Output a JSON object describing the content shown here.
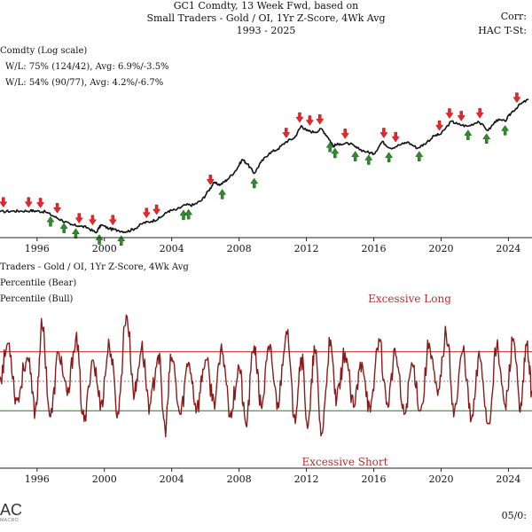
{
  "header": {
    "title_line1": "GC1 Comdty, 13 Week Fwd, based on",
    "title_line2": "Small Traders - Gold / OI, 1Yr Z-Score, 4Wk Avg",
    "title_line3": "1993 - 2025",
    "corr_line1": "Corr:",
    "corr_line2": "HAC T-St:"
  },
  "top_panel": {
    "legend_line1": "Comdty (Log scale)",
    "legend_line2": "W/L: 75% (124/42), Avg: 6.9%/-3.5%",
    "legend_line3": "W/L: 54% (90/77), Avg: 4.2%/-6.7%"
  },
  "bottom_panel": {
    "legend_line1": "Traders - Gold / OI, 1Yr Z-Score, 4Wk Avg",
    "legend_line2": "Percentile (Bear)",
    "legend_line3": "Percentile (Bull)",
    "annotation_long": "Excessive Long",
    "annotation_short": "Excessive Short"
  },
  "footer": {
    "logo_text": "AC",
    "logo_subtext": "MACRO",
    "date_text": "05/0:"
  },
  "colors": {
    "price_line": "#111111",
    "zscore_line": "#8b1a1a",
    "bear_marker": "#e8262b",
    "bull_marker": "#2e8b2e",
    "upper_threshold": "#cc3333",
    "lower_threshold": "#2a9a2a",
    "mid_line": "#555555",
    "annotation_long": "#b03030",
    "annotation_short": "#b03030"
  },
  "chart_data": [
    {
      "type": "line",
      "scale": "log",
      "x_range": [
        1993.8,
        2025.4
      ],
      "x_ticks": [
        1996,
        2000,
        2004,
        2008,
        2012,
        2016,
        2020,
        2024
      ],
      "x_tick_labels": [
        "1996",
        "2000",
        "2004",
        "2008",
        "2012",
        "2016",
        "2020",
        "2024"
      ],
      "ylim": [
        250,
        2900
      ],
      "price_series": [
        [
          1993.8,
          380
        ],
        [
          1994.5,
          385
        ],
        [
          1995.0,
          385
        ],
        [
          1995.6,
          388
        ],
        [
          1996.0,
          385
        ],
        [
          1996.5,
          380
        ],
        [
          1997.0,
          350
        ],
        [
          1997.5,
          325
        ],
        [
          1998.0,
          300
        ],
        [
          1998.5,
          295
        ],
        [
          1999.0,
          285
        ],
        [
          1999.5,
          260
        ],
        [
          1999.8,
          300
        ],
        [
          2000.3,
          280
        ],
        [
          2000.8,
          272
        ],
        [
          2001.3,
          265
        ],
        [
          2001.8,
          280
        ],
        [
          2002.3,
          310
        ],
        [
          2002.8,
          320
        ],
        [
          2003.3,
          340
        ],
        [
          2003.8,
          385
        ],
        [
          2004.3,
          395
        ],
        [
          2004.8,
          430
        ],
        [
          2005.3,
          430
        ],
        [
          2005.8,
          470
        ],
        [
          2006.2,
          560
        ],
        [
          2006.5,
          640
        ],
        [
          2006.9,
          620
        ],
        [
          2007.3,
          680
        ],
        [
          2007.8,
          800
        ],
        [
          2008.2,
          980
        ],
        [
          2008.5,
          900
        ],
        [
          2008.9,
          760
        ],
        [
          2009.3,
          930
        ],
        [
          2009.8,
          1100
        ],
        [
          2010.3,
          1180
        ],
        [
          2010.8,
          1350
        ],
        [
          2011.3,
          1450
        ],
        [
          2011.7,
          1800
        ],
        [
          2012.0,
          1650
        ],
        [
          2012.5,
          1600
        ],
        [
          2012.9,
          1700
        ],
        [
          2013.3,
          1450
        ],
        [
          2013.6,
          1250
        ],
        [
          2014.0,
          1300
        ],
        [
          2014.6,
          1300
        ],
        [
          2015.0,
          1200
        ],
        [
          2015.6,
          1120
        ],
        [
          2016.0,
          1080
        ],
        [
          2016.5,
          1350
        ],
        [
          2017.0,
          1200
        ],
        [
          2017.6,
          1280
        ],
        [
          2018.0,
          1340
        ],
        [
          2018.6,
          1200
        ],
        [
          2019.0,
          1290
        ],
        [
          2019.6,
          1500
        ],
        [
          2020.0,
          1550
        ],
        [
          2020.6,
          1950
        ],
        [
          2021.0,
          1850
        ],
        [
          2021.6,
          1780
        ],
        [
          2022.2,
          1950
        ],
        [
          2022.8,
          1650
        ],
        [
          2023.3,
          2000
        ],
        [
          2023.8,
          1950
        ],
        [
          2024.2,
          2300
        ],
        [
          2024.7,
          2650
        ],
        [
          2025.2,
          2900
        ]
      ],
      "bear_signals": [
        [
          1994.0,
          400
        ],
        [
          1995.5,
          400
        ],
        [
          1996.2,
          395
        ],
        [
          1997.2,
          360
        ],
        [
          1998.5,
          300
        ],
        [
          1999.3,
          290
        ],
        [
          2000.5,
          290
        ],
        [
          2002.5,
          330
        ],
        [
          2003.1,
          350
        ],
        [
          2006.3,
          600
        ],
        [
          2010.8,
          1400
        ],
        [
          2011.6,
          1850
        ],
        [
          2012.2,
          1750
        ],
        [
          2012.8,
          1790
        ],
        [
          2014.3,
          1380
        ],
        [
          2016.6,
          1400
        ],
        [
          2017.3,
          1300
        ],
        [
          2019.9,
          1600
        ],
        [
          2020.5,
          1990
        ],
        [
          2021.2,
          1900
        ],
        [
          2022.3,
          2000
        ],
        [
          2024.5,
          2650
        ]
      ],
      "bull_signals": [
        [
          1996.8,
          360
        ],
        [
          1997.6,
          320
        ],
        [
          1998.3,
          290
        ],
        [
          1999.7,
          260
        ],
        [
          2001.0,
          255
        ],
        [
          2004.7,
          405
        ],
        [
          2005.0,
          410
        ],
        [
          2007.0,
          590
        ],
        [
          2008.9,
          720
        ],
        [
          2013.4,
          1380
        ],
        [
          2013.7,
          1240
        ],
        [
          2014.9,
          1170
        ],
        [
          2015.7,
          1100
        ],
        [
          2016.9,
          1150
        ],
        [
          2018.7,
          1170
        ],
        [
          2021.6,
          1720
        ],
        [
          2022.7,
          1610
        ],
        [
          2023.8,
          1870
        ]
      ]
    },
    {
      "type": "line",
      "x_range": [
        1993.8,
        2025.4
      ],
      "x_ticks": [
        1996,
        2000,
        2004,
        2008,
        2012,
        2016,
        2020,
        2024
      ],
      "x_tick_labels": [
        "1996",
        "2000",
        "2004",
        "2008",
        "2012",
        "2016",
        "2020",
        "2024"
      ],
      "ylim": [
        -3.0,
        3.0
      ],
      "upper_threshold": 1.25,
      "lower_threshold": -1.25,
      "mid_line": 0.0,
      "anchors": [
        [
          1993.8,
          0.2
        ],
        [
          1994.3,
          1.6
        ],
        [
          1994.8,
          -0.8
        ],
        [
          1995.4,
          1.0
        ],
        [
          1995.9,
          -1.2
        ],
        [
          1996.3,
          2.3
        ],
        [
          1996.8,
          -1.5
        ],
        [
          1997.3,
          1.2
        ],
        [
          1997.8,
          -0.6
        ],
        [
          1998.3,
          1.8
        ],
        [
          1998.8,
          -1.7
        ],
        [
          1999.3,
          0.9
        ],
        [
          1999.8,
          -0.9
        ],
        [
          2000.3,
          1.5
        ],
        [
          2000.8,
          -1.3
        ],
        [
          2001.3,
          2.8
        ],
        [
          2001.8,
          -0.5
        ],
        [
          2002.2,
          1.4
        ],
        [
          2002.7,
          -1.0
        ],
        [
          2003.2,
          1.1
        ],
        [
          2003.6,
          -2.0
        ],
        [
          2004.0,
          1.0
        ],
        [
          2004.5,
          -1.4
        ],
        [
          2005.0,
          0.8
        ],
        [
          2005.5,
          -1.1
        ],
        [
          2006.0,
          0.9
        ],
        [
          2006.5,
          -0.8
        ],
        [
          2007.0,
          1.2
        ],
        [
          2007.5,
          -1.3
        ],
        [
          2008.0,
          0.6
        ],
        [
          2008.4,
          -1.8
        ],
        [
          2008.9,
          1.5
        ],
        [
          2009.3,
          -1.0
        ],
        [
          2009.8,
          1.3
        ],
        [
          2010.3,
          -0.9
        ],
        [
          2010.8,
          2.1
        ],
        [
          2011.3,
          -1.4
        ],
        [
          2011.7,
          1.0
        ],
        [
          2012.1,
          -1.9
        ],
        [
          2012.5,
          1.3
        ],
        [
          2012.9,
          -2.2
        ],
        [
          2013.4,
          1.5
        ],
        [
          2013.8,
          -0.8
        ],
        [
          2014.3,
          1.2
        ],
        [
          2014.8,
          -1.1
        ],
        [
          2015.3,
          0.8
        ],
        [
          2015.8,
          -1.3
        ],
        [
          2016.3,
          1.8
        ],
        [
          2016.8,
          -0.9
        ],
        [
          2017.3,
          1.1
        ],
        [
          2017.8,
          -1.4
        ],
        [
          2018.3,
          0.7
        ],
        [
          2018.8,
          -1.2
        ],
        [
          2019.3,
          1.6
        ],
        [
          2019.8,
          -0.6
        ],
        [
          2020.3,
          2.0
        ],
        [
          2020.8,
          -1.2
        ],
        [
          2021.3,
          1.3
        ],
        [
          2021.8,
          -1.6
        ],
        [
          2022.3,
          1.0
        ],
        [
          2022.8,
          -1.8
        ],
        [
          2023.3,
          1.4
        ],
        [
          2023.8,
          -1.0
        ],
        [
          2024.3,
          1.8
        ],
        [
          2024.7,
          -1.3
        ],
        [
          2025.1,
          1.5
        ],
        [
          2025.4,
          -0.4
        ]
      ]
    }
  ]
}
